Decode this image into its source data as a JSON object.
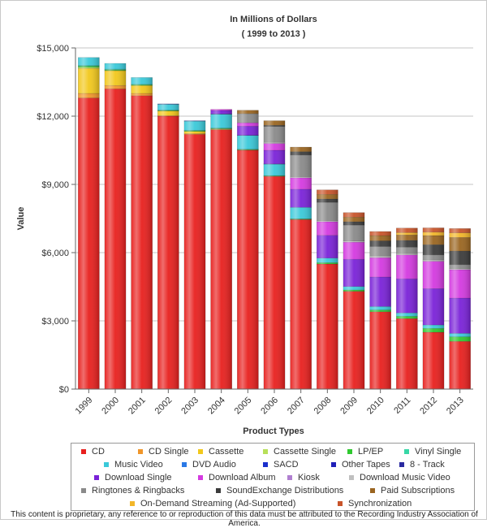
{
  "chart_data": {
    "type": "bar",
    "stacked": true,
    "title": "In Millions of Dollars",
    "subtitle": "( 1999 to 2013 )",
    "xlabel": "Product Types",
    "ylabel": "Value",
    "ylim": [
      0,
      15000
    ],
    "yticks": [
      {
        "value": 0,
        "label": "$0"
      },
      {
        "value": 3000,
        "label": "$3,000"
      },
      {
        "value": 6000,
        "label": "$6,000"
      },
      {
        "value": 9000,
        "label": "$9,000"
      },
      {
        "value": 12000,
        "label": "$12,000"
      },
      {
        "value": 15000,
        "label": "$15,000"
      }
    ],
    "grid": true,
    "legend_position": "bottom",
    "categories": [
      "1999",
      "2000",
      "2001",
      "2002",
      "2003",
      "2004",
      "2005",
      "2006",
      "2007",
      "2008",
      "2009",
      "2010",
      "2011",
      "2012",
      "2013"
    ],
    "series": [
      {
        "name": "CD",
        "color": "#e8201e",
        "values": [
          12800,
          13200,
          12900,
          12000,
          11200,
          11400,
          10500,
          9350,
          7450,
          5500,
          4300,
          3400,
          3100,
          2500,
          2100
        ]
      },
      {
        "name": "CD Single",
        "color": "#f0962a",
        "values": [
          200,
          150,
          100,
          30,
          30,
          20,
          10,
          10,
          10,
          0,
          0,
          0,
          0,
          0,
          0
        ]
      },
      {
        "name": "Cassette",
        "color": "#f2c81c",
        "values": [
          1100,
          650,
          350,
          200,
          100,
          20,
          10,
          0,
          0,
          0,
          0,
          0,
          0,
          0,
          0
        ]
      },
      {
        "name": "Cassette Single",
        "color": "#b8e05a",
        "values": [
          50,
          10,
          0,
          0,
          0,
          0,
          0,
          0,
          0,
          0,
          0,
          0,
          0,
          0,
          0
        ]
      },
      {
        "name": "LP/EP",
        "color": "#2fc92f",
        "values": [
          50,
          30,
          30,
          20,
          30,
          20,
          15,
          15,
          20,
          60,
          60,
          80,
          100,
          170,
          200
        ]
      },
      {
        "name": "Vinyl Single",
        "color": "#37d7a6",
        "values": [
          30,
          30,
          20,
          20,
          20,
          20,
          15,
          15,
          10,
          0,
          0,
          0,
          0,
          0,
          0
        ]
      },
      {
        "name": "Music Video",
        "color": "#3ac9d9",
        "values": [
          350,
          250,
          300,
          250,
          400,
          600,
          600,
          500,
          500,
          200,
          150,
          150,
          150,
          150,
          150
        ]
      },
      {
        "name": "DVD Audio",
        "color": "#2a79e6",
        "values": [
          0,
          0,
          0,
          10,
          10,
          10,
          5,
          5,
          0,
          0,
          0,
          0,
          0,
          0,
          0
        ]
      },
      {
        "name": "SACD",
        "color": "#1a2fcc",
        "values": [
          0,
          0,
          0,
          10,
          10,
          10,
          5,
          5,
          0,
          0,
          0,
          0,
          0,
          0,
          0
        ]
      },
      {
        "name": "Other Tapes",
        "color": "#1f1fb8",
        "values": [
          0,
          0,
          0,
          0,
          0,
          0,
          0,
          0,
          0,
          0,
          0,
          0,
          0,
          0,
          0
        ]
      },
      {
        "name": "8 - Track",
        "color": "#2a2aa0",
        "values": [
          0,
          0,
          0,
          0,
          0,
          0,
          0,
          0,
          0,
          0,
          0,
          0,
          0,
          0,
          0
        ]
      },
      {
        "name": "Download Single",
        "color": "#7a22d8",
        "values": [
          0,
          0,
          0,
          0,
          0,
          150,
          400,
          600,
          800,
          1000,
          1200,
          1300,
          1500,
          1600,
          1550
        ]
      },
      {
        "name": "Download Album",
        "color": "#d43ae0",
        "values": [
          0,
          0,
          0,
          0,
          0,
          50,
          150,
          300,
          500,
          600,
          750,
          850,
          1050,
          1200,
          1250
        ]
      },
      {
        "name": "Kiosk",
        "color": "#b07fd0",
        "values": [
          0,
          0,
          0,
          0,
          0,
          0,
          0,
          0,
          0,
          0,
          0,
          0,
          0,
          0,
          0
        ]
      },
      {
        "name": "Download Music Video",
        "color": "#c0c0c0",
        "values": [
          0,
          0,
          0,
          0,
          0,
          0,
          0,
          50,
          50,
          50,
          50,
          70,
          60,
          60,
          50
        ]
      },
      {
        "name": "Ringtones & Ringbacks",
        "color": "#8a8a8a",
        "values": [
          0,
          0,
          0,
          0,
          0,
          0,
          400,
          700,
          950,
          800,
          700,
          420,
          280,
          220,
          170
        ]
      },
      {
        "name": "SoundExchange Distributions",
        "color": "#3b3b3b",
        "values": [
          0,
          0,
          0,
          0,
          0,
          0,
          0,
          50,
          150,
          150,
          150,
          250,
          300,
          450,
          600
        ]
      },
      {
        "name": "Paid Subscriptions",
        "color": "#9a6520",
        "values": [
          0,
          0,
          0,
          0,
          0,
          0,
          150,
          200,
          200,
          200,
          200,
          230,
          240,
          400,
          600
        ]
      },
      {
        "name": "On-Demand Streaming (Ad-Supported)",
        "color": "#f2b629",
        "values": [
          0,
          0,
          0,
          0,
          0,
          0,
          0,
          0,
          0,
          0,
          0,
          0,
          100,
          150,
          200
        ]
      },
      {
        "name": "Synchronization",
        "color": "#c8542a",
        "values": [
          0,
          0,
          0,
          0,
          0,
          0,
          0,
          0,
          0,
          200,
          200,
          180,
          200,
          190,
          190
        ]
      }
    ]
  },
  "footnote": "This content is proprietary, any reference to or reproduction of this data must be attributed to the Recording Industry Association of America."
}
